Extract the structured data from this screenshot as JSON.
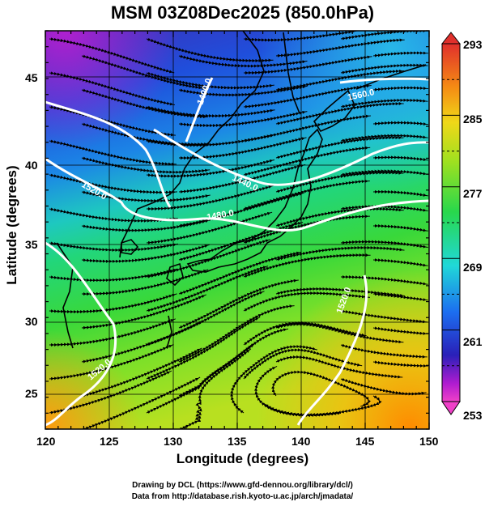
{
  "title": "MSM 03Z08Dec2025 (850.0hPa)",
  "x_axis": {
    "label": "Longitude (degrees)",
    "ticks": [
      "120",
      "125",
      "130",
      "135",
      "140",
      "145",
      "150"
    ]
  },
  "y_axis": {
    "label": "Latitude  (degrees)",
    "ticks": [
      "25",
      "30",
      "35",
      "40",
      "45"
    ]
  },
  "colorbar": {
    "labels": [
      "293",
      "285",
      "277",
      "269",
      "261",
      "253"
    ],
    "min": 253,
    "max": 293
  },
  "contour_labels": [
    "1400.0",
    "1560.0",
    "1520.0",
    "1440.0",
    "1480.0",
    "1520.0",
    "1520.0"
  ],
  "credits": {
    "line1": "Drawing by DCL (https://www.gfd-dennou.org/library/dcl/)",
    "line2": "Data from http://database.rish.kyoto-u.ac.jp/arch/jmadata/"
  }
}
